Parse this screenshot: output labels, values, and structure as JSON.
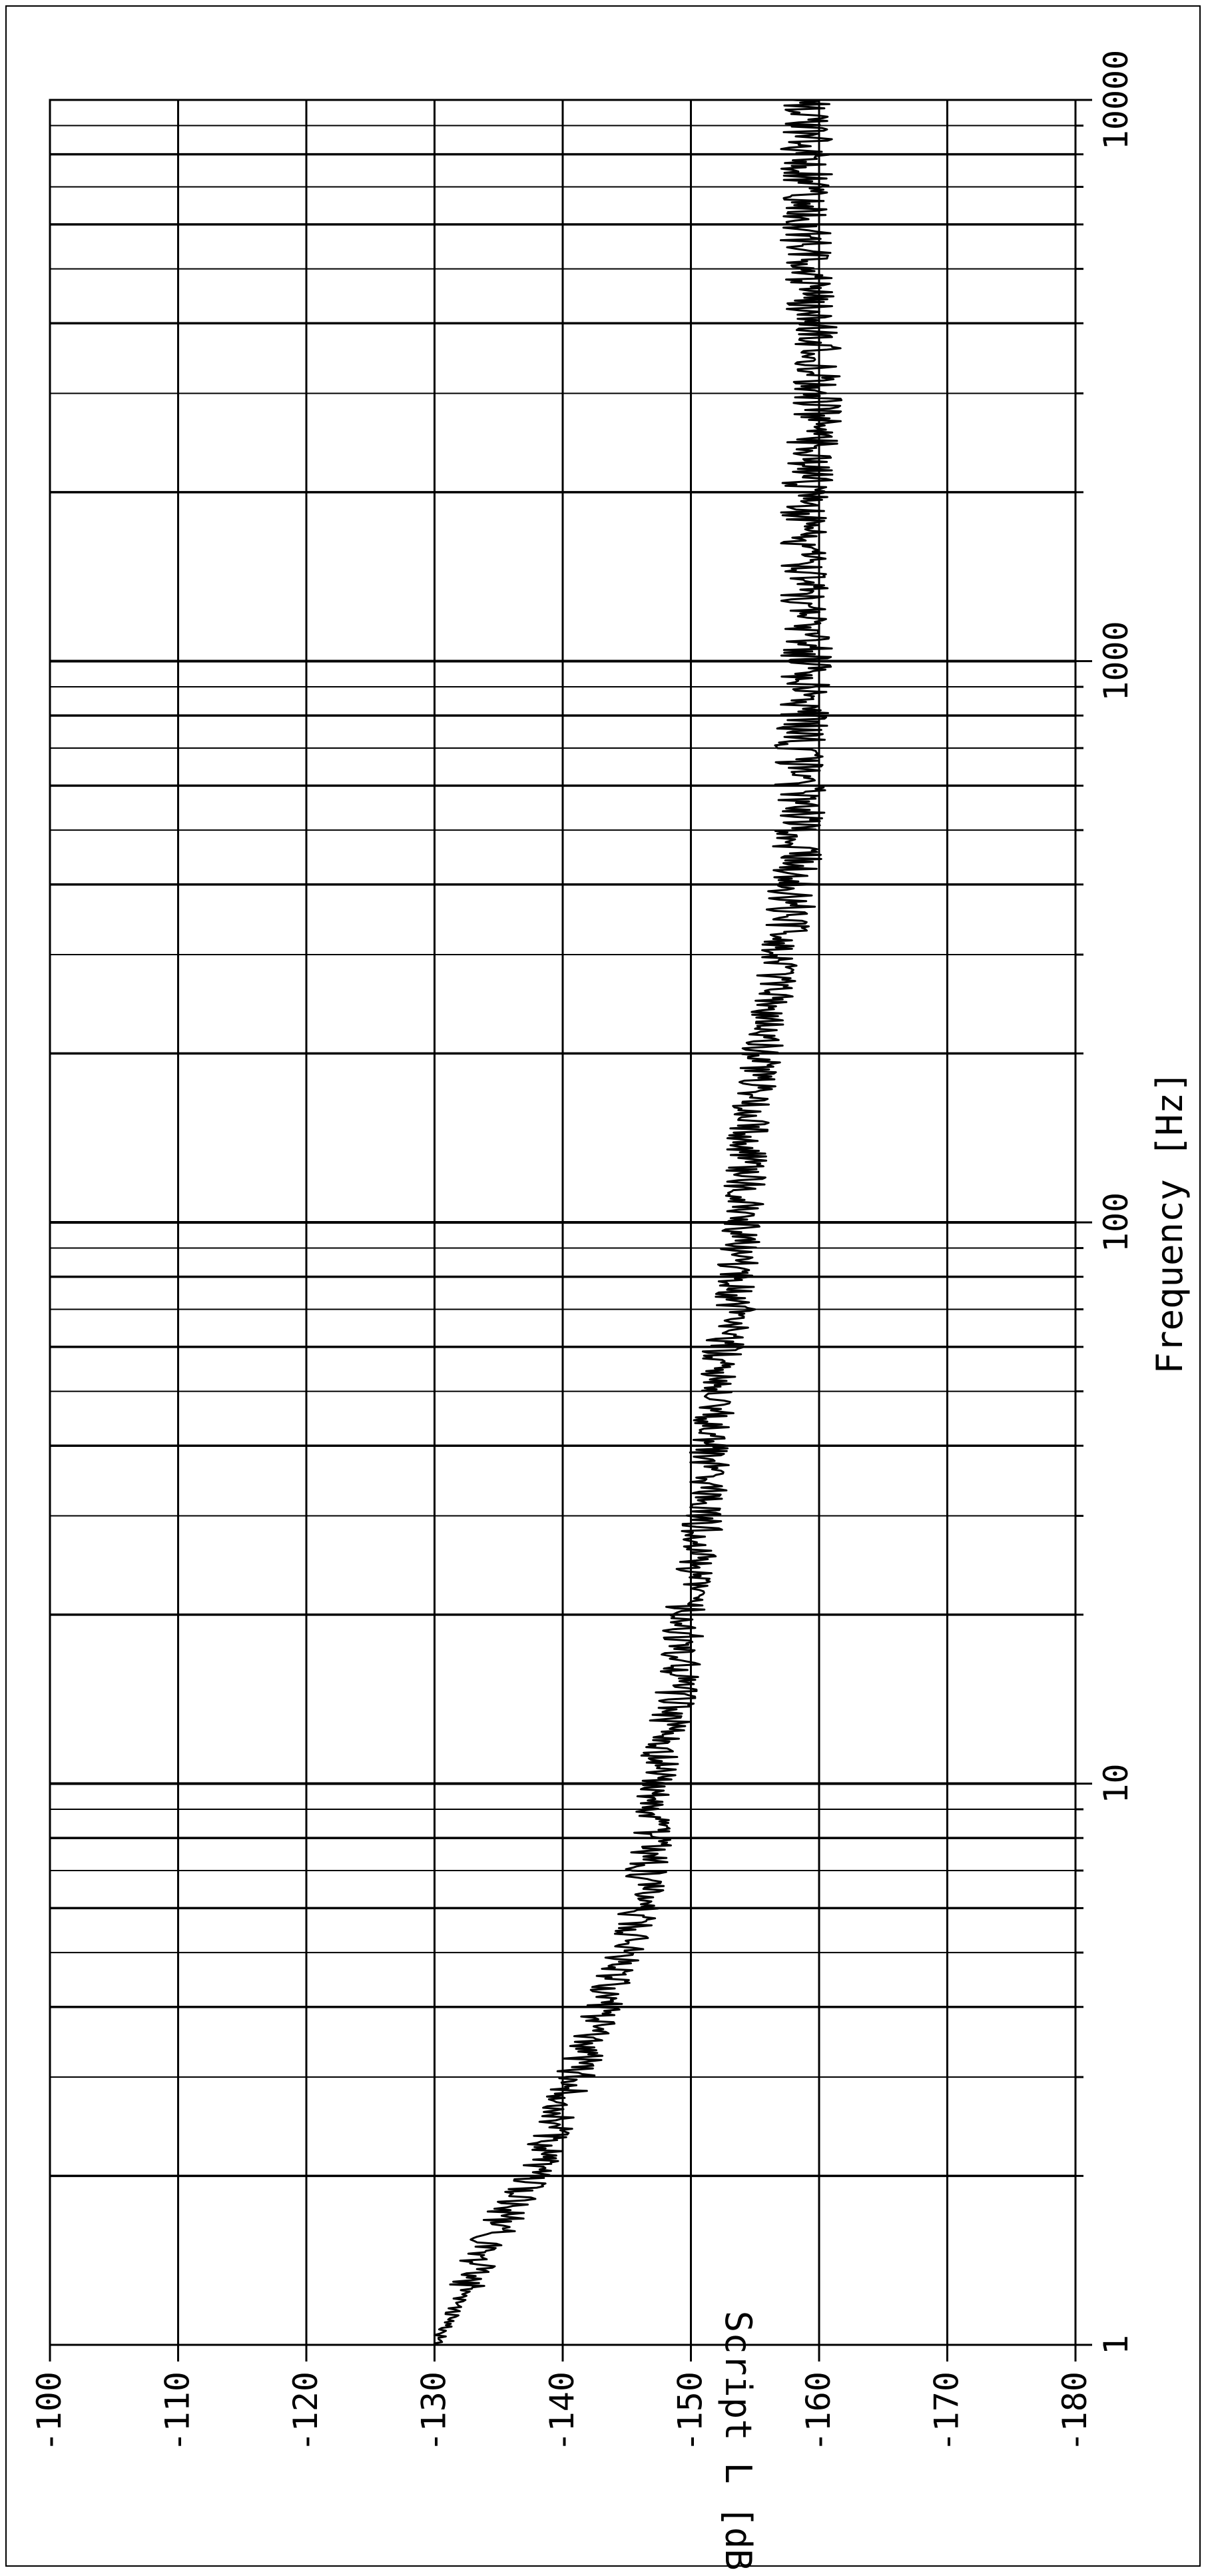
{
  "chart_data": {
    "type": "line",
    "orientation": "rotated-90",
    "x_scale": "log",
    "y_scale": "linear",
    "xlabel": "Frequency [Hz]",
    "ylabel": "Script L [dB]",
    "xlim": [
      1,
      10000
    ],
    "ylim": [
      -180,
      -100
    ],
    "x_ticks": [
      1,
      10,
      100,
      1000,
      10000
    ],
    "x_tick_labels": [
      "1",
      "10",
      "100",
      "1000",
      "10000"
    ],
    "y_ticks": [
      -100,
      -110,
      -120,
      -130,
      -140,
      -150,
      -160,
      -170,
      -180
    ],
    "y_tick_labels": [
      "-100",
      "-110",
      "-120",
      "-130",
      "-140",
      "-150",
      "-160",
      "-170",
      "-180"
    ],
    "grid": true,
    "line_color": "#000000",
    "series": [
      {
        "x": [
          1,
          1.2,
          1.5,
          2,
          2.5,
          3,
          4,
          5,
          6,
          7,
          8,
          10,
          12,
          15,
          20,
          25,
          30,
          40,
          50,
          60,
          70,
          80,
          100,
          150,
          200,
          300,
          400,
          500,
          700,
          1000,
          1500,
          2000,
          3000,
          4000,
          5000,
          7000,
          10000
        ],
        "y": [
          -130,
          -132,
          -134,
          -137.5,
          -139.5,
          -141,
          -143,
          -145,
          -146,
          -146.5,
          -147,
          -147,
          -148,
          -149,
          -149.5,
          -150.5,
          -151,
          -151.5,
          -152,
          -152.5,
          -153.5,
          -153.5,
          -154,
          -154.5,
          -155.5,
          -157,
          -158,
          -158.5,
          -158.5,
          -159,
          -159,
          -159,
          -160,
          -159.5,
          -159,
          -159,
          -159
        ]
      }
    ]
  }
}
